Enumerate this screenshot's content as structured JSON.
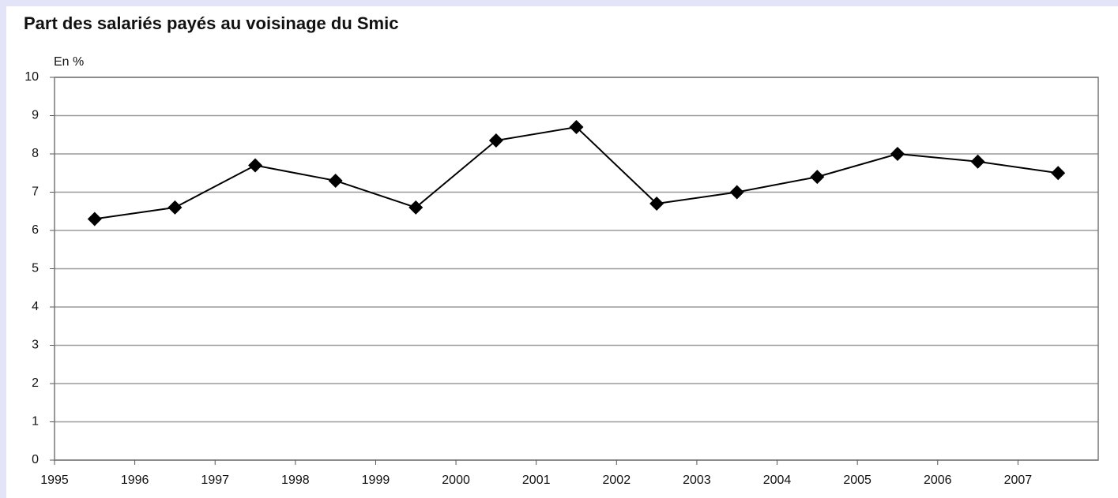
{
  "chart_data": {
    "type": "line",
    "title": "Part des salariés payés au voisinage du Smic",
    "y_unit_label": "En %",
    "x": [
      1995.5,
      1996.5,
      1997.5,
      1998.5,
      1999.5,
      2000.5,
      2001.5,
      2002.5,
      2003.5,
      2004.5,
      2005.5,
      2006.5,
      2007.5
    ],
    "values": [
      6.3,
      6.6,
      7.7,
      7.3,
      6.6,
      8.35,
      8.7,
      6.7,
      7.0,
      7.4,
      8.0,
      7.8,
      7.5
    ],
    "color": "#000000",
    "marker": "diamond",
    "xlim": [
      1995,
      2008
    ],
    "xticks": [
      1995,
      1996,
      1997,
      1998,
      1999,
      2000,
      2001,
      2002,
      2003,
      2004,
      2005,
      2006,
      2007
    ],
    "ylim": [
      0,
      10
    ],
    "yticks": [
      0,
      1,
      2,
      3,
      4,
      5,
      6,
      7,
      8,
      9,
      10
    ],
    "grid": true
  }
}
